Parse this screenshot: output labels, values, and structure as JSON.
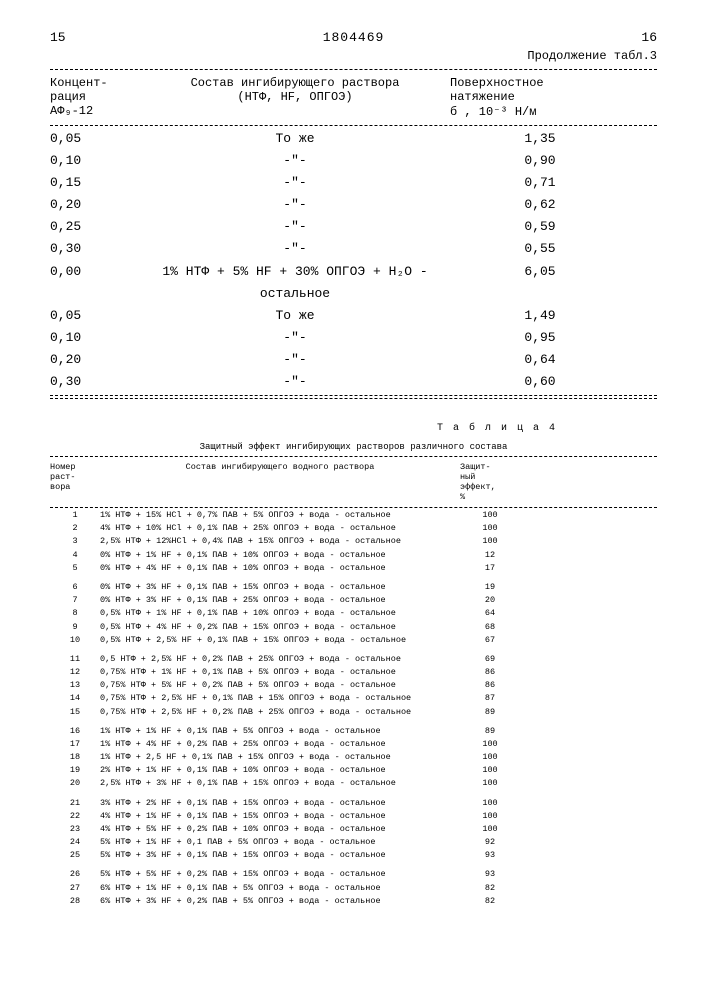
{
  "document_number": "1804469",
  "page_left": "15",
  "page_right": "16",
  "continuation": "Продолжение табл.3",
  "table3": {
    "headers": {
      "concentration": "Концент-\nрация\nАФ₉-12",
      "composition": "Состав ингибирующего раствора\n(НТФ, HF, ОПГОЭ)",
      "tension": "Поверхностное\nнатяжение\nб , 10⁻³ Н/м"
    },
    "rows": [
      {
        "c": "0,05",
        "comp": "То же",
        "t": "1,35"
      },
      {
        "c": "0,10",
        "comp": "-\"-",
        "t": "0,90"
      },
      {
        "c": "0,15",
        "comp": "-\"-",
        "t": "0,71"
      },
      {
        "c": "0,20",
        "comp": "-\"-",
        "t": "0,62"
      },
      {
        "c": "0,25",
        "comp": "-\"-",
        "t": "0,59"
      },
      {
        "c": "0,30",
        "comp": "-\"-",
        "t": "0,55"
      },
      {
        "c": "0,00",
        "comp": "1% НТФ + 5% HF + 30% ОПГОЭ + H₂O - остальное",
        "t": "6,05"
      },
      {
        "c": "0,05",
        "comp": "То же",
        "t": "1,49"
      },
      {
        "c": "0,10",
        "comp": "-\"-",
        "t": "0,95"
      },
      {
        "c": "0,20",
        "comp": "-\"-",
        "t": "0,64"
      },
      {
        "c": "0,30",
        "comp": "-\"-",
        "t": "0,60"
      }
    ]
  },
  "table4": {
    "title": "Т а б л и ц а  4",
    "subtitle": "Защитный эффект ингибирующих растворов различного состава",
    "headers": {
      "num": "Номер\nраст-\nвора",
      "comp": "Состав ингибирующего водного раствора",
      "effect": "Защит-\nный\nэффект,\n%"
    },
    "rows": [
      {
        "n": "1",
        "c": "1% НТФ + 15% HCl + 0,7% ПАВ + 5% ОПГОЭ + вода - остальное",
        "e": "100"
      },
      {
        "n": "2",
        "c": "4% НТФ + 10% HCl + 0,1% ПАВ + 25% ОПГОЭ + вода - остальное",
        "e": "100"
      },
      {
        "n": "3",
        "c": "2,5% НТФ + 12%HCl + 0,4% ПАВ + 15% ОПГОЭ + вода - остальное",
        "e": "100"
      },
      {
        "n": "4",
        "c": "0% НТФ + 1% HF + 0,1% ПАВ + 10% ОПГОЭ + вода - остальное",
        "e": "12"
      },
      {
        "n": "5",
        "c": "0% НТФ + 4% HF + 0,1% ПАВ + 10% ОПГОЭ + вода - остальное",
        "e": "17"
      },
      {
        "n": "6",
        "c": "0% НТФ + 3% HF + 0,1% ПАВ + 15% ОПГОЭ + вода - остальное",
        "e": "19"
      },
      {
        "n": "7",
        "c": "0% НТФ + 3% HF + 0,1% ПАВ + 25% ОПГОЭ + вода - остальное",
        "e": "20"
      },
      {
        "n": "8",
        "c": "0,5% НТФ + 1% HF + 0,1% ПАВ + 10% ОПГОЭ + вода - остальное",
        "e": "64"
      },
      {
        "n": "9",
        "c": "0,5% НТФ + 4% HF + 0,2% ПАВ + 15% ОПГОЭ + вода - остальное",
        "e": "68"
      },
      {
        "n": "10",
        "c": "0,5% НТФ + 2,5% HF + 0,1% ПАВ + 15% ОПГОЭ + вода - остальное",
        "e": "67"
      },
      {
        "n": "11",
        "c": "0,5 НТФ + 2,5% HF + 0,2% ПАВ + 25% ОПГОЭ + вода - остальное",
        "e": "69"
      },
      {
        "n": "12",
        "c": "0,75% НТФ + 1% HF + 0,1% ПАВ + 5% ОПГОЭ + вода - остальное",
        "e": "86"
      },
      {
        "n": "13",
        "c": "0,75% НТФ + 5% HF + 0,2% ПАВ + 5% ОПГОЭ + вода - остальное",
        "e": "86"
      },
      {
        "n": "14",
        "c": "0,75% НТФ + 2,5% HF + 0,1% ПАВ + 15% ОПГОЭ + вода - остальное",
        "e": "87"
      },
      {
        "n": "15",
        "c": "0,75% НТФ + 2,5% HF + 0,2% ПАВ + 25% ОПГОЭ + вода - остальное",
        "e": "89"
      },
      {
        "n": "16",
        "c": "1% НТФ + 1% HF + 0,1% ПАВ + 5% ОПГОЭ + вода - остальное",
        "e": "89"
      },
      {
        "n": "17",
        "c": "1% НТФ + 4% HF + 0,2% ПАВ + 25% ОПГОЭ + вода - остальное",
        "e": "100"
      },
      {
        "n": "18",
        "c": "1% НТФ + 2,5 HF + 0,1% ПАВ + 15% ОПГОЭ + вода - остальное",
        "e": "100"
      },
      {
        "n": "19",
        "c": "2% НТФ + 1% HF + 0,1% ПАВ + 10% ОПГОЭ + вода - остальное",
        "e": "100"
      },
      {
        "n": "20",
        "c": "2,5% НТФ + 3% HF + 0,1% ПАВ + 15% ОПГОЭ + вода - остальное",
        "e": "100"
      },
      {
        "n": "21",
        "c": "3% НТФ + 2% HF + 0,1% ПАВ + 15% ОПГОЭ + вода - остальное",
        "e": "100"
      },
      {
        "n": "22",
        "c": "4% НТФ + 1% HF + 0,1% ПАВ + 15% ОПГОЭ + вода - остальное",
        "e": "100"
      },
      {
        "n": "23",
        "c": "4% НТФ + 5% HF + 0,2% ПАВ + 10% ОПГОЭ + вода - остальное",
        "e": "100"
      },
      {
        "n": "24",
        "c": "5% НТФ + 1% HF + 0,1 ПАВ + 5% ОПГОЭ + вода - остальное",
        "e": "92"
      },
      {
        "n": "25",
        "c": "5% НТФ + 3% HF + 0,1% ПАВ + 15% ОПГОЭ + вода - остальное",
        "e": "93"
      },
      {
        "n": "26",
        "c": "5% НТФ + 5% HF + 0,2% ПАВ + 15% ОПГОЭ + вода - остальное",
        "e": "93"
      },
      {
        "n": "27",
        "c": "6% НТФ + 1% HF + 0,1% ПАВ + 5% ОПГОЭ + вода - остальное",
        "e": "82"
      },
      {
        "n": "28",
        "c": "6% НТФ + 3% HF + 0,2% ПАВ + 5% ОПГОЭ + вода - остальное",
        "e": "82"
      }
    ]
  }
}
